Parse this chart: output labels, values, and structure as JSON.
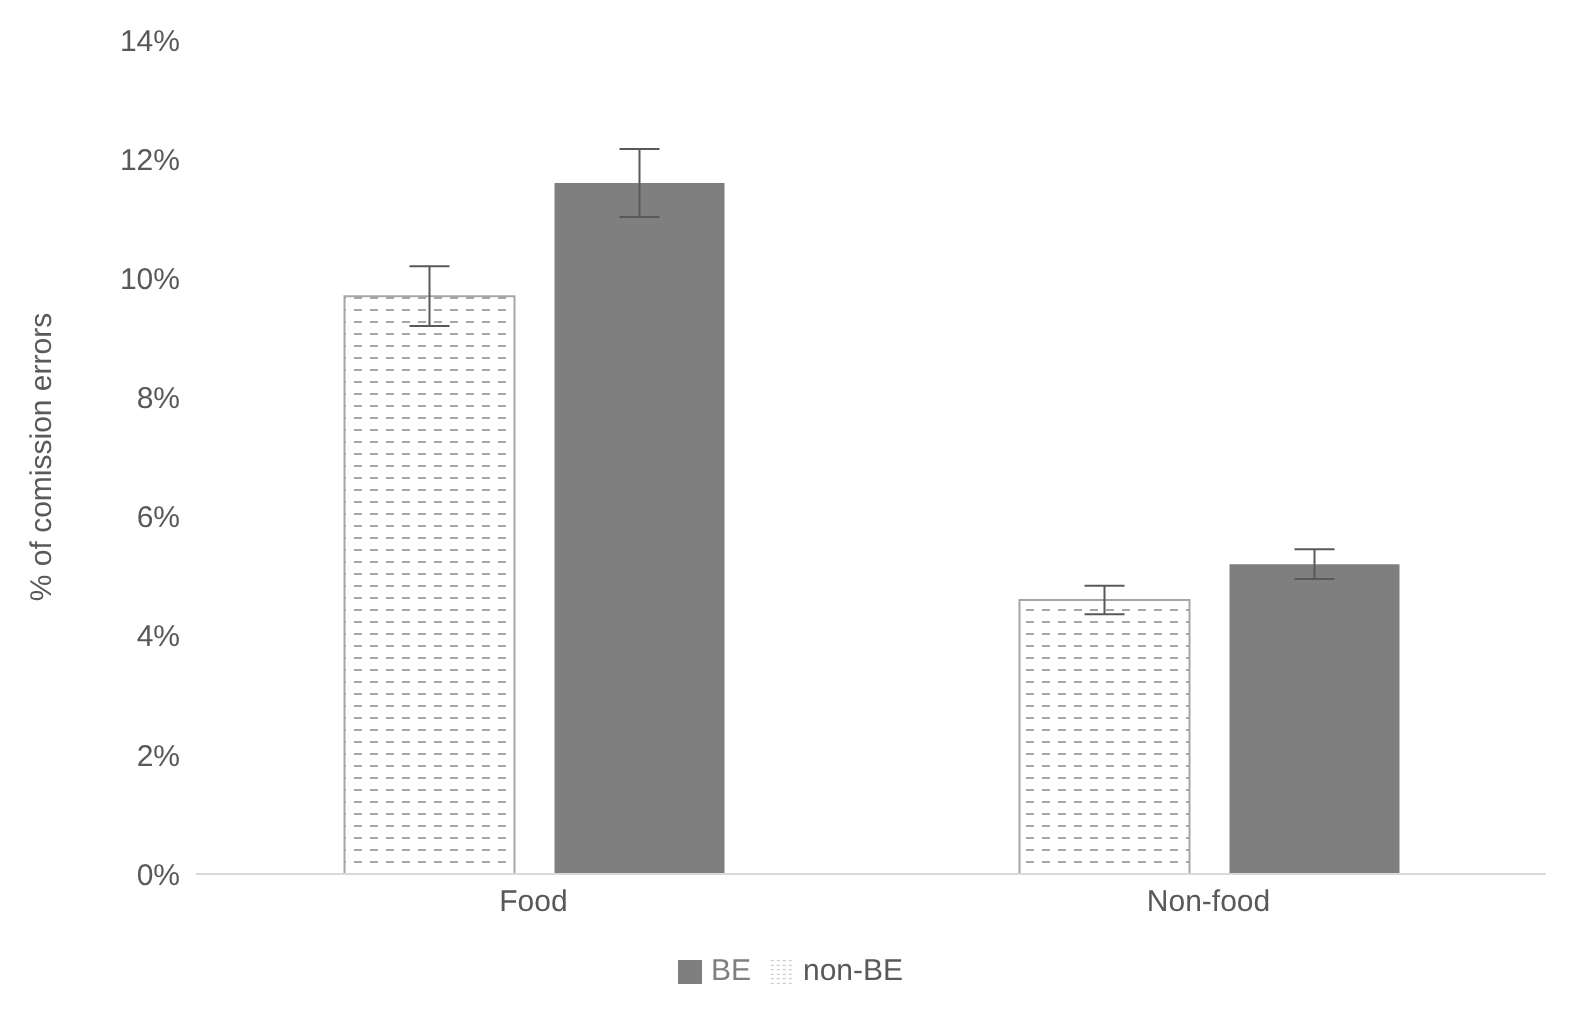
{
  "chart_data": {
    "type": "bar",
    "ylabel": "% of comission errors",
    "categories": [
      "Food",
      "Non-food"
    ],
    "series": [
      {
        "name": "non-BE",
        "color": "#a6a6a6",
        "values": [
          9.7,
          4.6
        ],
        "errors": [
          0.5,
          0.24
        ]
      },
      {
        "name": "BE",
        "color": "#7f7f7f",
        "values": [
          11.6,
          5.2
        ],
        "errors": [
          0.57,
          0.25
        ]
      }
    ],
    "ylim": [
      0,
      14
    ],
    "yticks": [
      {
        "value": 0,
        "label": "0%"
      },
      {
        "value": 2,
        "label": "2%"
      },
      {
        "value": 4,
        "label": "4%"
      },
      {
        "value": 6,
        "label": "6%"
      },
      {
        "value": 8,
        "label": "8%"
      },
      {
        "value": 10,
        "label": "10%"
      },
      {
        "value": 12,
        "label": "12%"
      },
      {
        "value": 14,
        "label": "14%"
      }
    ],
    "grid": false,
    "legend": "bottom"
  }
}
